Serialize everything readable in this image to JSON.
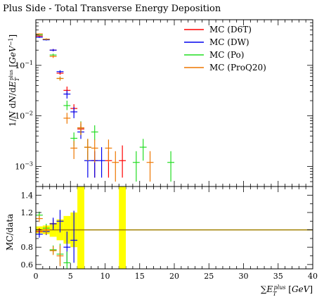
{
  "title": "Plus Side - Total Transverse Energy Deposition",
  "top_ylabel": "1/N dN/dE_T^{plus} [GeV^{-1}]",
  "ratio_ylabel": "MC/data",
  "xlabel": "ΣE_T^{plus} [GeV]",
  "colors": {
    "D6T": "#ff0000",
    "DW": "#0000ee",
    "Po": "#22dd22",
    "ProQ20": "#ee7700",
    "data_band": "#ffff00",
    "ratio_line": "#a08000"
  },
  "chart_data": [
    {
      "type": "scatter",
      "panel": "main",
      "title": "Plus Side - Total Transverse Energy Deposition",
      "xlabel": "ΣE_T^{plus} [GeV]",
      "ylabel": "1/N dN/dE_T^{plus} [GeV^{-1}]",
      "xlim": [
        0,
        40
      ],
      "ylim": [
        0.0004,
        0.8
      ],
      "yscale": "log",
      "x_ticks": [
        0,
        5,
        10,
        15,
        20,
        25,
        30,
        35,
        40
      ],
      "x_tick_labels": [
        "0",
        "5",
        "10",
        "15",
        "20",
        "25",
        "30",
        "35",
        "40"
      ],
      "y_ticks": [
        0.001,
        0.01,
        0.1
      ],
      "y_tick_labels": [
        "10^-3",
        "10^-2",
        "10^-1"
      ],
      "legend": "top-right",
      "legend_entries": [
        "MC (D6T)",
        "MC (DW)",
        "MC (Po)",
        "MC (ProQ20)"
      ],
      "series": [
        {
          "name": "MC (D6T)",
          "color_key": "D6T",
          "points": [
            {
              "x": 0.5,
              "y": 0.38,
              "lo": 0.37,
              "hi": 0.39
            },
            {
              "x": 1.5,
              "y": 0.33,
              "lo": 0.32,
              "hi": 0.34
            },
            {
              "x": 2.5,
              "y": 0.2,
              "lo": 0.19,
              "hi": 0.21
            },
            {
              "x": 3.5,
              "y": 0.07,
              "lo": 0.065,
              "hi": 0.075
            },
            {
              "x": 4.5,
              "y": 0.032,
              "lo": 0.027,
              "hi": 0.038
            },
            {
              "x": 5.5,
              "y": 0.014,
              "lo": 0.011,
              "hi": 0.017
            },
            {
              "x": 6.5,
              "y": 0.0055,
              "lo": 0.0042,
              "hi": 0.007
            },
            {
              "x": 7.5,
              "y": 0.0024,
              "lo": 0.0014,
              "hi": 0.0034
            },
            {
              "x": 8.5,
              "y": 0.0013,
              "lo": 0.0006,
              "hi": 0.002
            },
            {
              "x": 10.5,
              "y": 0.0013,
              "lo": 0.0006,
              "hi": 0.002
            },
            {
              "x": 12.5,
              "y": 0.0013,
              "lo": 0.0006,
              "hi": 0.0026
            }
          ]
        },
        {
          "name": "MC (DW)",
          "color_key": "DW",
          "points": [
            {
              "x": 0.5,
              "y": 0.36,
              "lo": 0.35,
              "hi": 0.37
            },
            {
              "x": 1.5,
              "y": 0.32,
              "lo": 0.31,
              "hi": 0.33
            },
            {
              "x": 2.5,
              "y": 0.2,
              "lo": 0.19,
              "hi": 0.21
            },
            {
              "x": 3.5,
              "y": 0.075,
              "lo": 0.07,
              "hi": 0.08
            },
            {
              "x": 4.5,
              "y": 0.027,
              "lo": 0.022,
              "hi": 0.032
            },
            {
              "x": 5.5,
              "y": 0.012,
              "lo": 0.009,
              "hi": 0.015
            },
            {
              "x": 6.5,
              "y": 0.0048,
              "lo": 0.0035,
              "hi": 0.0062
            },
            {
              "x": 7.5,
              "y": 0.0013,
              "lo": 0.0006,
              "hi": 0.002
            },
            {
              "x": 8.5,
              "y": 0.0013,
              "lo": 0.0006,
              "hi": 0.002
            },
            {
              "x": 9.5,
              "y": 0.0013,
              "lo": 0.0006,
              "hi": 0.0024
            }
          ]
        },
        {
          "name": "MC (Po)",
          "color_key": "Po",
          "points": [
            {
              "x": 0.5,
              "y": 0.4,
              "lo": 0.39,
              "hi": 0.41
            },
            {
              "x": 1.5,
              "y": 0.33,
              "lo": 0.32,
              "hi": 0.34
            },
            {
              "x": 2.5,
              "y": 0.16,
              "lo": 0.15,
              "hi": 0.17
            },
            {
              "x": 3.5,
              "y": 0.055,
              "lo": 0.05,
              "hi": 0.06
            },
            {
              "x": 4.5,
              "y": 0.016,
              "lo": 0.013,
              "hi": 0.02
            },
            {
              "x": 5.5,
              "y": 0.0036,
              "lo": 0.0025,
              "hi": 0.0047
            },
            {
              "x": 6.5,
              "y": 0.0058,
              "lo": 0.0042,
              "hi": 0.0078
            },
            {
              "x": 7.5,
              "y": 0.0024,
              "lo": 0.0013,
              "hi": 0.0035
            },
            {
              "x": 8.5,
              "y": 0.0048,
              "lo": 0.0033,
              "hi": 0.0065
            },
            {
              "x": 14.5,
              "y": 0.0012,
              "lo": 0.0005,
              "hi": 0.002
            },
            {
              "x": 15.5,
              "y": 0.0024,
              "lo": 0.0013,
              "hi": 0.0035
            },
            {
              "x": 19.5,
              "y": 0.0012,
              "lo": 0.0005,
              "hi": 0.002
            }
          ]
        },
        {
          "name": "MC (ProQ20)",
          "color_key": "ProQ20",
          "points": [
            {
              "x": 0.5,
              "y": 0.42,
              "lo": 0.41,
              "hi": 0.43
            },
            {
              "x": 1.5,
              "y": 0.33,
              "lo": 0.32,
              "hi": 0.34
            },
            {
              "x": 2.5,
              "y": 0.15,
              "lo": 0.14,
              "hi": 0.16
            },
            {
              "x": 3.5,
              "y": 0.055,
              "lo": 0.05,
              "hi": 0.06
            },
            {
              "x": 4.5,
              "y": 0.009,
              "lo": 0.007,
              "hi": 0.0115
            },
            {
              "x": 5.5,
              "y": 0.0023,
              "lo": 0.0014,
              "hi": 0.0032
            },
            {
              "x": 6.5,
              "y": 0.0058,
              "lo": 0.0042,
              "hi": 0.0076
            },
            {
              "x": 7.5,
              "y": 0.0024,
              "lo": 0.0013,
              "hi": 0.0035
            },
            {
              "x": 8.5,
              "y": 0.0023,
              "lo": 0.0012,
              "hi": 0.0034
            },
            {
              "x": 10.5,
              "y": 0.0023,
              "lo": 0.0012,
              "hi": 0.0034
            },
            {
              "x": 11.5,
              "y": 0.0012,
              "lo": 0.0005,
              "hi": 0.002
            },
            {
              "x": 16.5,
              "y": 0.0012,
              "lo": 0.0005,
              "hi": 0.002
            }
          ]
        }
      ]
    },
    {
      "type": "scatter",
      "panel": "ratio",
      "ylabel": "MC/data",
      "xlabel": "ΣE_T^{plus} [GeV]",
      "xlim": [
        0,
        40
      ],
      "ylim": [
        0.55,
        1.5
      ],
      "y_ticks": [
        0.6,
        0.8,
        1.0,
        1.2,
        1.4
      ],
      "y_tick_labels": [
        "0.6",
        "0.8",
        "1",
        "1.2",
        "1.4"
      ],
      "reference_line": 1.0,
      "data_band": [
        {
          "x0": 0,
          "x1": 1,
          "lo": 0.96,
          "hi": 1.04
        },
        {
          "x0": 1,
          "x1": 2,
          "lo": 0.95,
          "hi": 1.05
        },
        {
          "x0": 2,
          "x1": 3,
          "lo": 0.92,
          "hi": 1.08
        },
        {
          "x0": 3,
          "x1": 4,
          "lo": 0.88,
          "hi": 1.12
        },
        {
          "x0": 4,
          "x1": 5,
          "lo": 0.84,
          "hi": 1.16
        },
        {
          "x0": 5,
          "x1": 6,
          "lo": 0.8,
          "hi": 1.2
        },
        {
          "x0": 6,
          "x1": 7,
          "lo": 0.55,
          "hi": 1.5
        },
        {
          "x0": 12,
          "x1": 13,
          "lo": 0.55,
          "hi": 1.5
        }
      ],
      "series": [
        {
          "name": "MC (D6T)",
          "color_key": "D6T",
          "points": [
            {
              "x": 0.5,
              "y": 0.98,
              "lo": 0.94,
              "hi": 1.02
            },
            {
              "x": 1.5,
              "y": 1.0,
              "lo": 0.96,
              "hi": 1.04
            },
            {
              "x": 2.5,
              "y": 1.07,
              "lo": 1.02,
              "hi": 1.12
            }
          ]
        },
        {
          "name": "MC (DW)",
          "color_key": "DW",
          "points": [
            {
              "x": 0.5,
              "y": 0.95,
              "lo": 0.91,
              "hi": 0.99
            },
            {
              "x": 1.5,
              "y": 0.98,
              "lo": 0.94,
              "hi": 1.02
            },
            {
              "x": 2.5,
              "y": 1.07,
              "lo": 1.0,
              "hi": 1.14
            },
            {
              "x": 3.5,
              "y": 1.1,
              "lo": 0.97,
              "hi": 1.23
            },
            {
              "x": 4.5,
              "y": 0.8,
              "lo": 0.62,
              "hi": 0.98
            },
            {
              "x": 5.5,
              "y": 0.88,
              "lo": 0.62,
              "hi": 1.22
            }
          ]
        },
        {
          "name": "MC (Po)",
          "color_key": "Po",
          "points": [
            {
              "x": 0.5,
              "y": 1.17,
              "lo": 1.13,
              "hi": 1.21
            },
            {
              "x": 1.5,
              "y": 1.02,
              "lo": 0.97,
              "hi": 1.07
            },
            {
              "x": 2.5,
              "y": 0.77,
              "lo": 0.72,
              "hi": 0.82
            },
            {
              "x": 3.5,
              "y": 0.72,
              "lo": 0.6,
              "hi": 0.84
            },
            {
              "x": 4.5,
              "y": 0.62,
              "lo": 0.55,
              "hi": 0.75
            }
          ]
        },
        {
          "name": "MC (ProQ20)",
          "color_key": "ProQ20",
          "points": [
            {
              "x": 0.5,
              "y": 1.13,
              "lo": 1.09,
              "hi": 1.17
            },
            {
              "x": 1.5,
              "y": 1.0,
              "lo": 0.95,
              "hi": 1.05
            },
            {
              "x": 2.5,
              "y": 0.76,
              "lo": 0.71,
              "hi": 0.81
            },
            {
              "x": 3.5,
              "y": 0.7,
              "lo": 0.58,
              "hi": 0.82
            }
          ]
        }
      ]
    }
  ]
}
